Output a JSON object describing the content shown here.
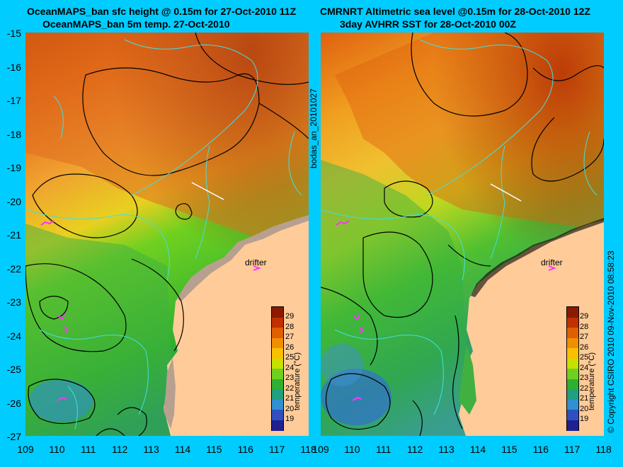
{
  "left_panel": {
    "title_line1": "OceanMAPS_ban sfc height @ 0.15m for 27-Oct-2010 11Z",
    "title_line2": "OceanMAPS_ban 5m temp. 27-Oct-2010"
  },
  "right_panel": {
    "title_line1": "CMRNRT Altimetric sea level  @0.15m  for 28-Oct-2010 12Z",
    "title_line2": "3day AVHRR SST for 28-Oct-2010 00Z"
  },
  "y_ticks": [
    "-15",
    "-16",
    "-17",
    "-18",
    "-19",
    "-20",
    "-21",
    "-22",
    "-23",
    "-24",
    "-25",
    "-26",
    "-27"
  ],
  "x_ticks": [
    "109",
    "110",
    "111",
    "112",
    "113",
    "114",
    "115",
    "116",
    "117",
    "118"
  ],
  "side_label_middle": "bodas_an_20101027",
  "side_label_right": "© Copyright CSIRO 2010   09-Nov-2010 08:58:23",
  "drifter_label": "drifter",
  "colorbar": {
    "title": "temperature (°C)",
    "labels": [
      "29",
      "28",
      "27",
      "26",
      "25",
      "24",
      "23",
      "22",
      "21",
      "20",
      "19"
    ],
    "colors": [
      "#8b1a00",
      "#c03000",
      "#e06000",
      "#f09000",
      "#f8c000",
      "#c8e000",
      "#70d020",
      "#30b030",
      "#20a080",
      "#3090d0",
      "#3050c0",
      "#202090"
    ]
  },
  "map_colors": {
    "land": "#ffcc99",
    "land_shadow": "#b8a090",
    "contour": "#000000",
    "bathymetry": "#40e0e0",
    "drifter": "#ff33ff",
    "separator": "#00ccff"
  }
}
